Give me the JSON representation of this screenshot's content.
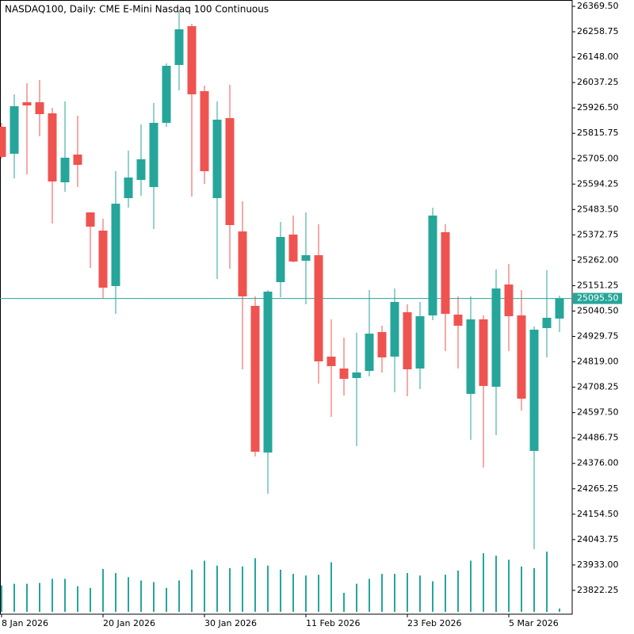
{
  "chart_data": {
    "type": "candlestick",
    "title": "NASDAQ100, Daily:  CME E-Mini Nasdaq 100 Continuous",
    "categories": [
      "8 Jan 2026",
      null,
      null,
      null,
      null,
      null,
      null,
      null,
      "20 Jan 2026",
      null,
      null,
      null,
      null,
      null,
      null,
      null,
      "30 Jan 2026",
      null,
      null,
      null,
      null,
      null,
      null,
      null,
      "11 Feb 2026",
      null,
      null,
      null,
      null,
      null,
      null,
      null,
      "23 Feb 2026",
      null,
      null,
      null,
      null,
      null,
      null,
      null,
      "5 Mar 2026",
      null,
      null,
      null,
      null
    ],
    "open": [
      25844.1,
      25726.6,
      25951.2,
      25951.2,
      25902.9,
      25602.1,
      25723.1,
      25470.8,
      25391.3,
      25149.4,
      25533.0,
      25612.5,
      25581.4,
      25861.4,
      26113.7,
      26283.1,
      25999.6,
      25533.0,
      25882.1,
      25387.8,
      25063.0,
      24423.5,
      25166.6,
      25374.0,
      25259.9,
      25284.1,
      24841.7,
      24789.9,
      24748.4,
      24779.5,
      24948.9,
      24841.7,
      25035.3,
      24789.9,
      25021.5,
      25384.4,
      25025.0,
      24679.3,
      25004.2,
      24710.4,
      25156.3,
      25021.5,
      24430.4,
      24966.2,
      25007.7
    ],
    "high": [
      25861.4,
      25985.8,
      26034.2,
      26048.0,
      25927.1,
      25954.7,
      25892.5,
      25470.8,
      25443.2,
      25650.5,
      25740.4,
      25854.5,
      25947.8,
      26120.6,
      26348.8,
      26293.5,
      26023.8,
      25954.7,
      26027.3,
      25519.2,
      25104.4,
      25132.1,
      25429.3,
      25457.0,
      25470.8,
      25419.0,
      25004.2,
      24924.7,
      24945.5,
      25132.1,
      24976.5,
      25139.0,
      25069.9,
      25080.2,
      25491.5,
      25419.0,
      25104.4,
      25104.4,
      25021.5,
      25221.9,
      25246.1,
      25132.1,
      24973.1,
      25218.5,
      25107.9
    ],
    "low": [
      25705.8,
      25619.4,
      25636.7,
      25802.6,
      25422.4,
      25560.6,
      25581.4,
      25228.8,
      25097.5,
      25028.4,
      25491.5,
      25543.3,
      25398.2,
      25844.1,
      26003.1,
      25539.9,
      25595.2,
      25180.5,
      25225.4,
      24786.5,
      24406.2,
      24243.8,
      25101.0,
      25253.0,
      25069.9,
      24724.2,
      24579.0,
      24672.4,
      24451.1,
      24755.3,
      24772.6,
      24686.2,
      24668.9,
      24700.0,
      25000.8,
      24865.9,
      24789.9,
      24478.8,
      24357.8,
      24499.5,
      24865.9,
      24606.7,
      24001.8,
      24838.3,
      24948.9
    ],
    "close": [
      25712.8,
      25934.0,
      25937.4,
      25899.4,
      25605.6,
      25709.3,
      25678.2,
      25408.6,
      25142.5,
      25508.8,
      25622.9,
      25702.4,
      25861.4,
      26110.3,
      26269.3,
      25985.8,
      25650.5,
      25875.2,
      25415.5,
      25104.4,
      24427.0,
      25125.2,
      25363.6,
      25256.5,
      25284.1,
      24821.0,
      24800.3,
      24744.9,
      24772.6,
      24942.0,
      24838.3,
      25080.2,
      24786.5,
      25018.0,
      25457.0,
      25028.4,
      24976.5,
      25004.2,
      24713.8,
      25139.0,
      25018.0,
      24658.5,
      24959.3,
      25011.1,
      25095.5
    ],
    "volume": [
      32,
      34,
      34,
      35,
      40,
      40,
      31,
      29,
      52,
      47,
      42,
      38,
      36,
      29,
      38,
      51,
      62,
      56,
      53,
      55,
      65,
      56,
      51,
      46,
      44,
      45,
      60,
      23,
      34,
      40,
      46,
      46,
      47,
      44,
      37,
      45,
      50,
      62,
      71,
      68,
      63,
      55,
      53,
      73,
      4
    ],
    "up_color": "#26a69a",
    "down_color": "#ef5350",
    "ylim": [
      23718.3,
      26397.2
    ],
    "yticks": [
      {
        "value": 26369.5,
        "label": "26369.50"
      },
      {
        "value": 26258.75,
        "label": "26258.75"
      },
      {
        "value": 26148.0,
        "label": "26148.00"
      },
      {
        "value": 26037.25,
        "label": "26037.25"
      },
      {
        "value": 25926.5,
        "label": "25926.50"
      },
      {
        "value": 25815.75,
        "label": "25815.75"
      },
      {
        "value": 25705.0,
        "label": "25705.00"
      },
      {
        "value": 25594.25,
        "label": "25594.25"
      },
      {
        "value": 25483.5,
        "label": "25483.50"
      },
      {
        "value": 25372.75,
        "label": "25372.75"
      },
      {
        "value": 25262.0,
        "label": "25262.00"
      },
      {
        "value": 25151.25,
        "label": "25151.25"
      },
      {
        "value": 25040.5,
        "label": "25040.50"
      },
      {
        "value": 24929.75,
        "label": "24929.75"
      },
      {
        "value": 24819.0,
        "label": "24819.00"
      },
      {
        "value": 24708.25,
        "label": "24708.25"
      },
      {
        "value": 24597.5,
        "label": "24597.50"
      },
      {
        "value": 24486.75,
        "label": "24486.75"
      },
      {
        "value": 24376.0,
        "label": "24376.00"
      },
      {
        "value": 24265.25,
        "label": "24265.25"
      },
      {
        "value": 24154.5,
        "label": "24154.50"
      },
      {
        "value": 24043.75,
        "label": "24043.75"
      },
      {
        "value": 23933.0,
        "label": "23933.00"
      },
      {
        "value": 23822.25,
        "label": "23822.25"
      }
    ],
    "last_price": {
      "value": 25095.5,
      "label": "25095.50"
    },
    "last_price_color": "#26a69a",
    "grid": false
  }
}
